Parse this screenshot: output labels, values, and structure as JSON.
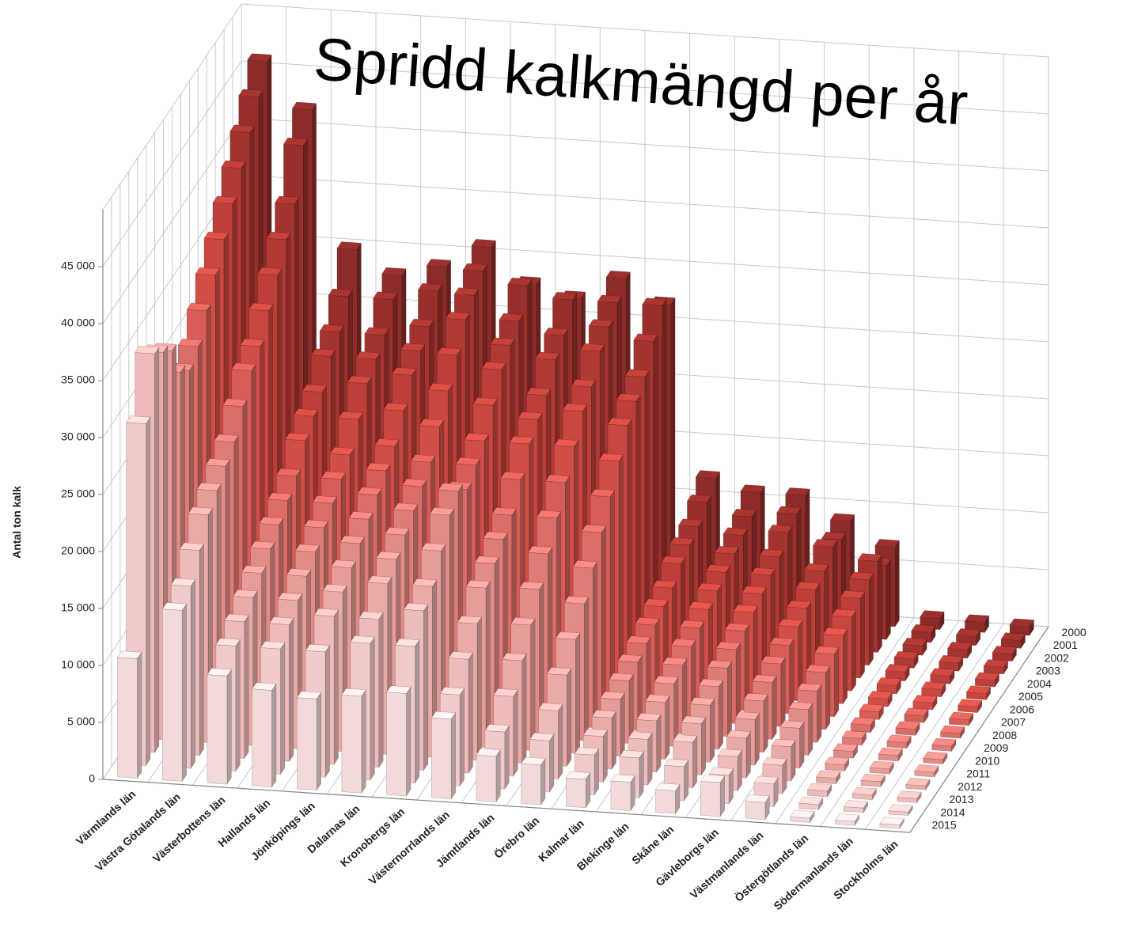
{
  "chart_data": {
    "type": "bar3d",
    "title": "Spridd kalkmängd per år",
    "y_label": "Antal ton kalk",
    "categories": [
      "Värmlands län",
      "Västra Götalands län",
      "Västerbottens län",
      "Hallands län",
      "Jönköpings län",
      "Dalarnas län",
      "Kronobergs län",
      "Västernorrlands län",
      "Jämtlands län",
      "Örebro län",
      "Kalmar län",
      "Blekinge län",
      "Skåne län",
      "Gävleborgs län",
      "Västmanlands län",
      "Östergötlands län",
      "Södermanlands län",
      "Stockholms län"
    ],
    "ylim": [
      0,
      50000
    ],
    "yticks": [
      0,
      {
        "value": 5000,
        "label": "5 000"
      },
      {
        "value": 10000,
        "label": "10 000"
      },
      {
        "value": 15000,
        "label": "15 000"
      },
      {
        "value": 20000,
        "label": "20 000"
      },
      {
        "value": 25000,
        "label": "25 000"
      },
      {
        "value": 30000,
        "label": "30 000"
      },
      {
        "value": 35000,
        "label": "35 000"
      },
      {
        "value": 40000,
        "label": "40 000"
      },
      {
        "value": 45000,
        "label": "45 000"
      }
    ],
    "grid": true,
    "series": [
      {
        "name": "2000",
        "color": "#8c2b28",
        "values": [
          46000,
          42000,
          30000,
          28000,
          29000,
          31000,
          28000,
          27000,
          29000,
          27000,
          12000,
          11000,
          11000,
          9000,
          7000,
          1000,
          900,
          800
        ]
      },
      {
        "name": "2001",
        "color": "#982f2b",
        "values": [
          44000,
          40000,
          27000,
          27000,
          28000,
          30000,
          29000,
          28000,
          28000,
          28000,
          11000,
          10000,
          10500,
          8500,
          6500,
          900,
          800,
          700
        ]
      },
      {
        "name": "2002",
        "color": "#a4342f",
        "values": [
          42000,
          36000,
          25000,
          25000,
          26000,
          29000,
          27000,
          26000,
          27000,
          26000,
          10000,
          9500,
          10000,
          9000,
          8000,
          850,
          750,
          650
        ]
      },
      {
        "name": "2003",
        "color": "#b03a34",
        "values": [
          40000,
          34000,
          24000,
          24000,
          25000,
          28000,
          26000,
          25000,
          26000,
          24000,
          9500,
          9000,
          9000,
          8000,
          7500,
          800,
          700,
          600
        ]
      },
      {
        "name": "2004",
        "color": "#bc4039",
        "values": [
          38000,
          32000,
          22000,
          23000,
          24000,
          26000,
          25000,
          23000,
          24000,
          23000,
          9000,
          8500,
          8500,
          7500,
          7000,
          800,
          700,
          600
        ]
      },
      {
        "name": "2005",
        "color": "#c8473f",
        "values": [
          36000,
          30000,
          21000,
          21000,
          22000,
          24000,
          23000,
          22000,
          23000,
          22000,
          8000,
          8000,
          8000,
          7000,
          6500,
          750,
          650,
          550
        ]
      },
      {
        "name": "2006",
        "color": "#d14f47",
        "values": [
          34000,
          28000,
          20000,
          19000,
          20000,
          22000,
          21000,
          21000,
          21000,
          20000,
          7500,
          7500,
          7500,
          6500,
          6000,
          700,
          600,
          500
        ]
      },
      {
        "name": "2007",
        "color": "#d65e57",
        "values": [
          32000,
          27000,
          18000,
          18000,
          19000,
          20000,
          20000,
          19000,
          19000,
          18000,
          7000,
          7000,
          7000,
          6000,
          5500,
          700,
          600,
          500
        ]
      },
      {
        "name": "2008",
        "color": "#db6d67",
        "values": [
          30000,
          25000,
          17000,
          17000,
          18000,
          19000,
          19000,
          17000,
          17000,
          16000,
          6500,
          6500,
          6500,
          5500,
          5000,
          650,
          550,
          450
        ]
      },
      {
        "name": "2009",
        "color": "#de7d78",
        "values": [
          29000,
          23000,
          16000,
          16000,
          17000,
          18000,
          20000,
          16000,
          15000,
          14000,
          6000,
          6000,
          6000,
          5000,
          4500,
          600,
          500,
          450
        ]
      },
      {
        "name": "2010",
        "color": "#e28c88",
        "values": [
          30000,
          22000,
          15000,
          15000,
          16000,
          17000,
          19000,
          15000,
          13000,
          12000,
          5500,
          5500,
          5500,
          4500,
          4000,
          600,
          500,
          400
        ]
      },
      {
        "name": "2011",
        "color": "#e69c98",
        "values": [
          33000,
          21000,
          14000,
          14000,
          15000,
          16000,
          17000,
          14000,
          11000,
          10000,
          5000,
          5000,
          5000,
          4000,
          3500,
          550,
          450,
          400
        ]
      },
      {
        "name": "2012",
        "color": "#e9aba8",
        "values": [
          34000,
          20000,
          13000,
          13000,
          14000,
          15000,
          15000,
          12000,
          9000,
          8000,
          4500,
          4500,
          4500,
          3500,
          3000,
          500,
          450,
          350
        ]
      },
      {
        "name": "2013",
        "color": "#edbbb9",
        "values": [
          35000,
          18000,
          12000,
          12000,
          13000,
          13000,
          14000,
          10000,
          7000,
          6000,
          4000,
          4000,
          4000,
          3000,
          2500,
          500,
          400,
          350
        ]
      },
      {
        "name": "2014",
        "color": "#f0cbc9",
        "values": [
          30000,
          16000,
          11000,
          11000,
          11000,
          12000,
          12000,
          8000,
          5000,
          4500,
          3500,
          3500,
          3000,
          2500,
          2000,
          450,
          400,
          300
        ]
      },
      {
        "name": "2015",
        "color": "#f3dada",
        "values": [
          10500,
          15000,
          9500,
          8500,
          8000,
          8500,
          9000,
          7000,
          4000,
          3500,
          2500,
          2500,
          2000,
          3000,
          1500,
          400,
          350,
          300
        ]
      }
    ]
  }
}
